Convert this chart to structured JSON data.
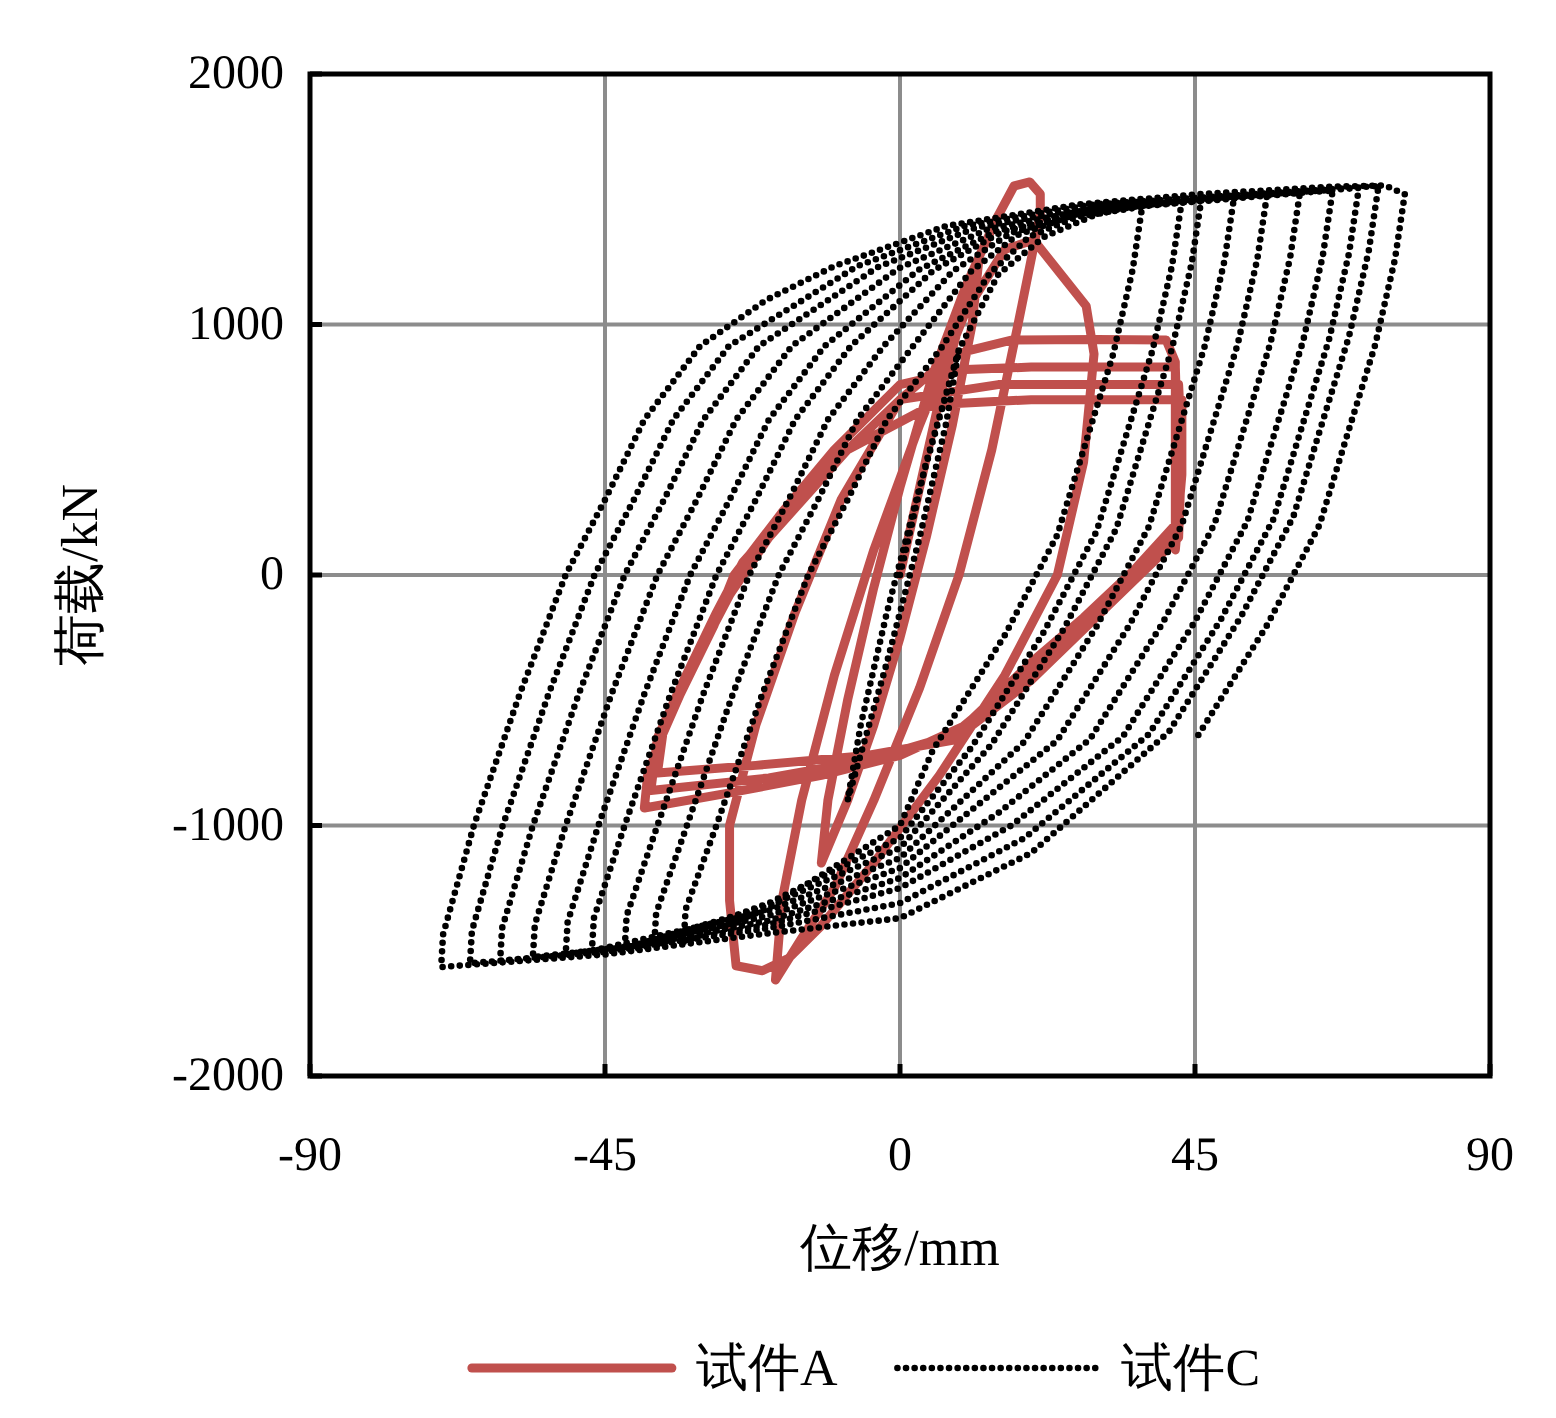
{
  "chart_data": {
    "type": "line",
    "xlabel": "位移/mm",
    "ylabel": "荷载/kN",
    "xlim": [
      -90,
      90
    ],
    "xticks": [
      -90,
      -45,
      0,
      45,
      90
    ],
    "ylim": [
      -2000,
      2000
    ],
    "yticks": [
      -2000,
      -1000,
      0,
      1000,
      2000
    ],
    "grid": true,
    "legend": "bottom",
    "marker": "none",
    "series": [
      {
        "name": "试件A",
        "color": "#c0504d",
        "line_style": "solid",
        "x": [
          0,
          3,
          6,
          9,
          12,
          11,
          8,
          4,
          0,
          -4,
          -8,
          -12,
          -11,
          -8,
          -4,
          0,
          5,
          10,
          14.6,
          17.4,
          19.8,
          21.4,
          21.4,
          18,
          14,
          9,
          3,
          -4,
          -10,
          -15,
          -19,
          -18,
          -15,
          -10,
          -4,
          3,
          10,
          16,
          20.4,
          28.4,
          29.6,
          28,
          24,
          16,
          6,
          -4,
          -12,
          -17,
          -21,
          -25,
          -26,
          -26,
          -22,
          -16,
          -9,
          0,
          8,
          17,
          30,
          40.6,
          42,
          42,
          42,
          35.7,
          28,
          20.4,
          10,
          0,
          -12,
          -26,
          -39,
          -38.5,
          -36.6,
          -33.5,
          -28.4,
          -25.3,
          -18,
          -10,
          0,
          10,
          20,
          42,
          42.5,
          42,
          36,
          20,
          8,
          -5,
          -20,
          -38,
          -37,
          -33,
          -28,
          -24,
          -12,
          0,
          15,
          42.5,
          43,
          42.5,
          35,
          20,
          8,
          -5,
          -22,
          -37,
          -36,
          -32,
          -26,
          -20,
          -8,
          5,
          20,
          43,
          43,
          42
        ],
        "values": [
          0,
          350,
          700,
          1000,
          1250,
          1000,
          600,
          150,
          -250,
          -600,
          -900,
          -1150,
          -900,
          -500,
          -50,
          350,
          800,
          1150,
          1417,
          1553,
          1569,
          1521,
          1440,
          1000,
          500,
          0,
          -450,
          -900,
          -1250,
          -1450,
          -1617,
          -1300,
          -900,
          -400,
          100,
          600,
          1050,
          1300,
          1337,
          1074,
          882,
          450,
          0,
          -400,
          -800,
          -1150,
          -1400,
          -1530,
          -1580,
          -1560,
          -1300,
          -1000,
          -600,
          -150,
          300,
          700,
          880,
          938,
          940,
          938,
          850,
          500,
          200,
          20,
          -170,
          -340,
          -600,
          -720,
          -800,
          -870,
          -930,
          -800,
          -659,
          -475,
          -203,
          0,
          250,
          500,
          760,
          820,
          830,
          830,
          400,
          180,
          0,
          -380,
          -640,
          -740,
          -810,
          -860,
          -650,
          -420,
          -150,
          50,
          400,
          700,
          760,
          760,
          500,
          150,
          -40,
          -420,
          -660,
          -720,
          -760,
          -790,
          -600,
          -380,
          -80,
          150,
          500,
          680,
          700,
          700,
          400,
          100
        ]
      },
      {
        "name": "试件C",
        "color": "#000000",
        "line_style": "dotted",
        "x": [
          0,
          4,
          9,
          7,
          3,
          -2,
          -8,
          -6,
          -2,
          3,
          9,
          15,
          22,
          30,
          37,
          35.5,
          32.5,
          28,
          24,
          16,
          5,
          0,
          -20,
          -33,
          -32.7,
          -28,
          -21,
          -14,
          -8,
          -2,
          6.5,
          13.7,
          19.7,
          26.9,
          43,
          41.5,
          38.5,
          34,
          30,
          22,
          11,
          0,
          -20,
          -37.5,
          -37.2,
          -32.5,
          -25.5,
          -18.5,
          -12.5,
          -6.5,
          2,
          10.7,
          17.9,
          26.6,
          46,
          44.5,
          41.5,
          37,
          33,
          25,
          14,
          0,
          -20,
          -42,
          -41.7,
          -37,
          -30,
          -23,
          -17,
          -11,
          -2.5,
          8.1,
          16.9,
          27.5,
          51,
          49.5,
          46.5,
          42,
          38,
          30,
          19,
          0,
          -20,
          -47,
          -46.7,
          -42,
          -35,
          -28,
          -22,
          -16,
          -7.5,
          5.1,
          15.5,
          28.1,
          56,
          54.5,
          51.5,
          47,
          43,
          35,
          24,
          0,
          -20,
          -40,
          -51,
          -50.7,
          -46,
          -39,
          -32,
          -26,
          -20,
          -11.5,
          2.9,
          14.7,
          29.1,
          61,
          59.5,
          56.5,
          52,
          48,
          40,
          29,
          15,
          0,
          -20,
          -40,
          -56,
          -55.7,
          -51,
          -44,
          -37,
          -31,
          -25,
          -16.5,
          -0.2,
          13.4,
          29.7,
          66,
          64.5,
          61.5,
          57,
          53,
          45,
          34,
          17,
          0,
          -20,
          -40,
          -61,
          -60.7,
          -56,
          -49,
          -42,
          -36,
          -30,
          -21.5,
          -3.4,
          11.6,
          29.7,
          70,
          68.5,
          65.5,
          61,
          57,
          49,
          38,
          19,
          0,
          -20,
          -45,
          -65.6,
          -65.3,
          -60.6,
          -53.6,
          -46.6,
          -40.6,
          -34.6,
          -26.1,
          -6.5,
          9.8,
          29.4,
          73,
          71.5,
          68.5,
          64,
          60,
          52,
          41,
          20,
          0,
          -20,
          -45,
          -70,
          -69.7,
          -65,
          -58,
          -51,
          -45,
          -39,
          -30.5,
          -20.4,
          -10,
          7,
          27.5,
          46,
          66,
          74,
          77,
          75.5,
          72.5,
          68,
          64,
          56,
          45
        ],
        "values": [
          0,
          450,
          900,
          600,
          150,
          -350,
          -900,
          -600,
          -150,
          350,
          900,
          1200,
          1350,
          1440,
          1480,
          1220,
          880,
          500,
          160,
          -240,
          -700,
          -1000,
          -1330,
          -1465,
          -1335,
          -1000,
          -475,
          0,
          300,
          620,
          914,
          1204,
          1350,
          1429,
          1495,
          1235,
          895,
          515,
          175,
          -225,
          -685,
          -1050,
          -1310,
          -1480,
          -1350,
          -1000,
          -475,
          0,
          300,
          620,
          914,
          1209,
          1357,
          1438,
          1505,
          1245,
          905,
          525,
          185,
          -215,
          -675,
          -1090,
          -1320,
          -1490,
          -1360,
          -1000,
          -475,
          0,
          300,
          620,
          914,
          1214,
          1365,
          1446,
          1515,
          1255,
          915,
          535,
          195,
          -205,
          -665,
          -1130,
          -1340,
          -1500,
          -1370,
          -1000,
          -475,
          0,
          300,
          620,
          914,
          1216,
          1369,
          1451,
          1520,
          1260,
          920,
          540,
          200,
          -200,
          -660,
          -1170,
          -1360,
          -1470,
          -1515,
          -1385,
          -1000,
          -475,
          0,
          300,
          620,
          914,
          1219,
          1372,
          1455,
          1525,
          1265,
          925,
          545,
          205,
          -195,
          -655,
          -950,
          -1210,
          -1380,
          -1480,
          -1525,
          -1395,
          -1000,
          -475,
          0,
          300,
          620,
          914,
          1224,
          1380,
          1464,
          1535,
          1275,
          935,
          555,
          215,
          -185,
          -645,
          -1000,
          -1250,
          -1395,
          -1490,
          -1540,
          -1410,
          -1000,
          -475,
          0,
          300,
          620,
          914,
          1229,
          1387,
          1473,
          1545,
          1285,
          945,
          565,
          225,
          -175,
          -635,
          -1050,
          -1310,
          -1410,
          -1505,
          -1550,
          -1420,
          -1000,
          -475,
          0,
          300,
          620,
          914,
          1233,
          1393,
          1480,
          1553,
          1293,
          953,
          573,
          233,
          -167,
          -627,
          -1110,
          -1370,
          -1430,
          -1515,
          -1565,
          -1435,
          -1000,
          -475,
          0,
          300,
          620,
          914,
          1098,
          1233,
          1393,
          1480,
          1521,
          1550,
          1555,
          1520,
          1260,
          920,
          540,
          200,
          -200,
          -660
        ]
      }
    ]
  }
}
